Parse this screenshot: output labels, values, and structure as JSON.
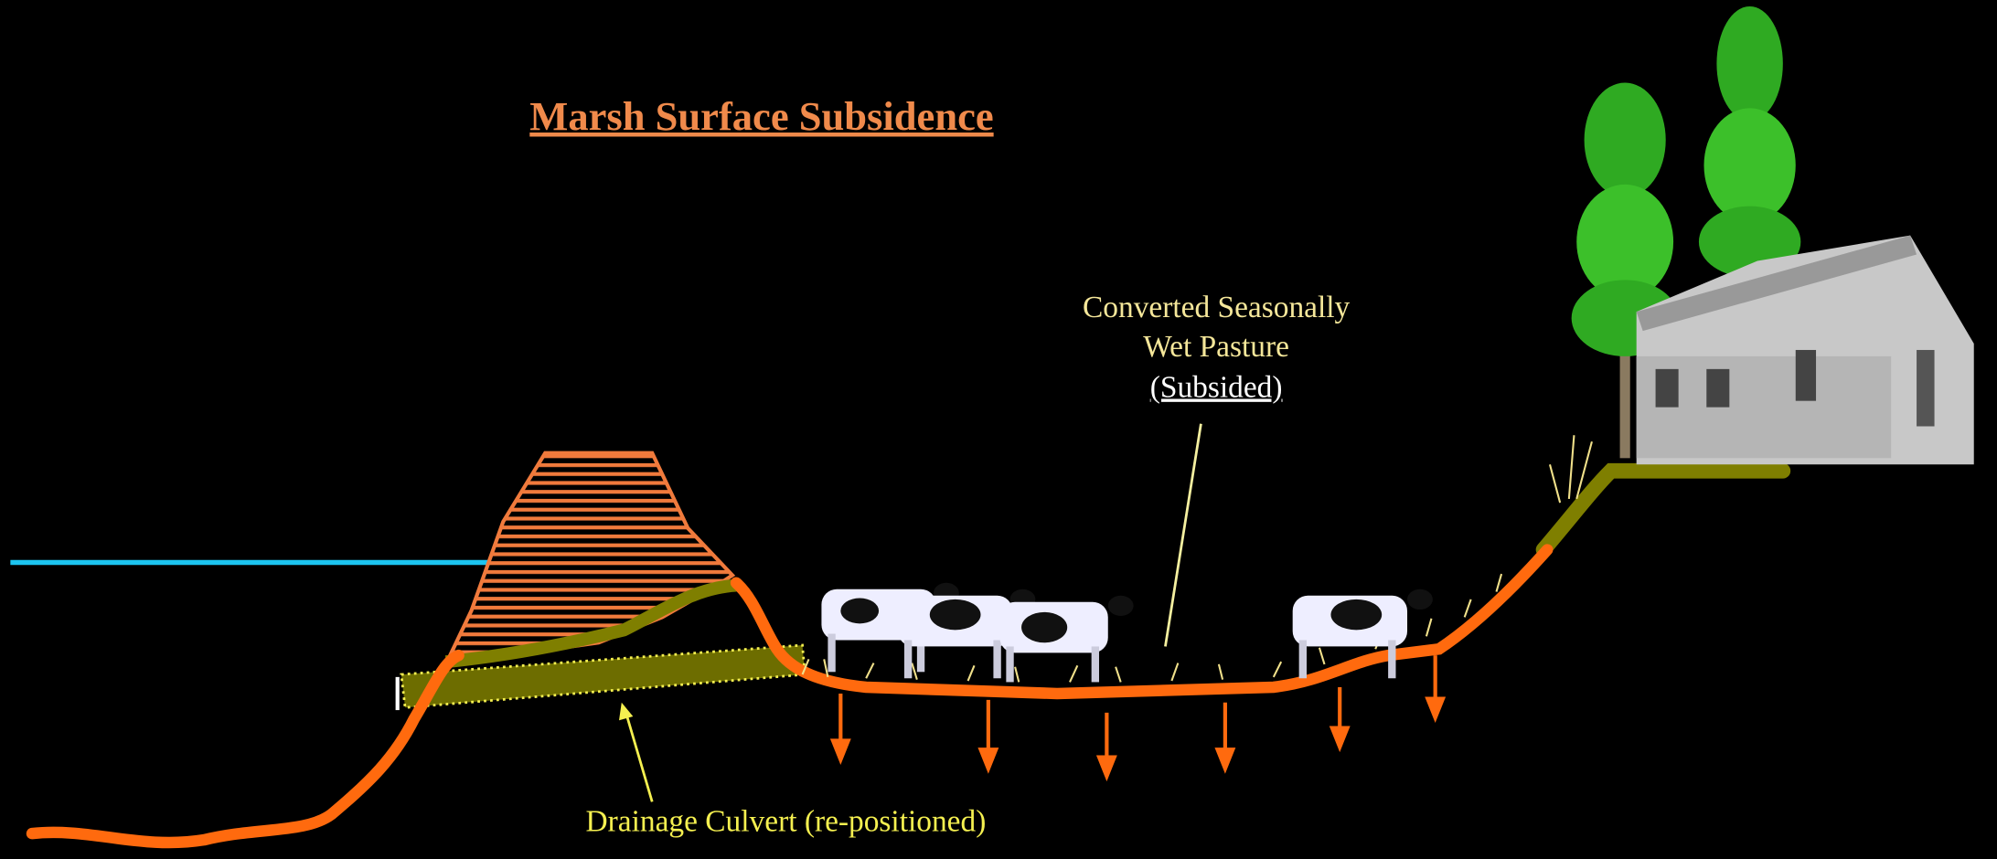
{
  "title": "Marsh Surface Subsidence",
  "pasture_label": [
    "Converted Seasonally",
    "Wet Pasture",
    "(Subsided)"
  ],
  "culvert_label": "Drainage Culvert (re-positioned)"
}
